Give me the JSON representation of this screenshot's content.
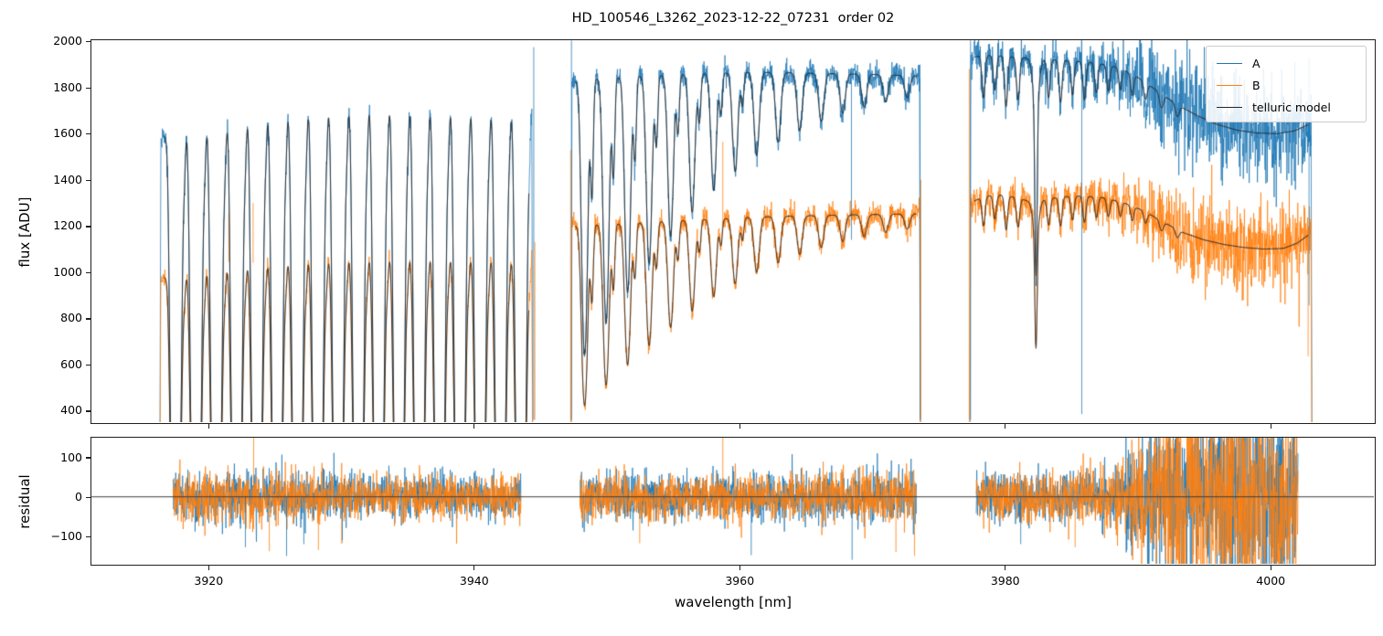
{
  "chart_data": {
    "type": "line",
    "title": "HD_100546_L3262_2023-12-22_07231  order 02",
    "xlabel": "wavelength [nm]",
    "xlim": [
      3911.2,
      4007.8
    ],
    "xticks": [
      3920,
      3940,
      3960,
      3980,
      4000
    ],
    "grid": false,
    "legend_position": "upper right",
    "legend": [
      {
        "label": "A",
        "color": "#1f77b4"
      },
      {
        "label": "B",
        "color": "#ff7f0e"
      },
      {
        "label": "telluric model",
        "color": "#262626"
      }
    ],
    "colors": {
      "A": "#1f77b4",
      "B": "#ff7f0e",
      "model": "#262626",
      "spine": "#1f1f1f",
      "zero_line": "#3a3a3a"
    },
    "panels": [
      {
        "name": "flux",
        "ylabel": "flux [ADU]",
        "ylim": [
          350,
          2005
        ],
        "yticks": [
          400,
          600,
          800,
          1000,
          1200,
          1400,
          1600,
          1800,
          2000
        ]
      },
      {
        "name": "residual",
        "ylabel": "residual",
        "ylim": [
          -170,
          150
        ],
        "yticks": [
          -100,
          0,
          100
        ]
      }
    ],
    "segments": [
      {
        "x0": 3916.35,
        "x1": 3944.45,
        "res_x0": 3917.35,
        "res_x1": 3943.55,
        "contA": [
          [
            3916.4,
            1560
          ],
          [
            3917.2,
            1640
          ],
          [
            3919,
            1660
          ],
          [
            3921,
            1690
          ],
          [
            3923,
            1715
          ],
          [
            3925,
            1735
          ],
          [
            3927,
            1755
          ],
          [
            3929,
            1765
          ],
          [
            3931,
            1775
          ],
          [
            3933,
            1778
          ],
          [
            3935,
            1772
          ],
          [
            3937,
            1768
          ],
          [
            3939,
            1763
          ],
          [
            3941,
            1756
          ],
          [
            3943,
            1748
          ],
          [
            3944.4,
            1742
          ]
        ],
        "contB": [
          [
            3916.4,
            960
          ],
          [
            3917.2,
            1010
          ],
          [
            3919,
            1030
          ],
          [
            3921,
            1050
          ],
          [
            3923,
            1065
          ],
          [
            3925,
            1078
          ],
          [
            3927,
            1088
          ],
          [
            3929,
            1095
          ],
          [
            3931,
            1100
          ],
          [
            3933,
            1103
          ],
          [
            3935,
            1104
          ],
          [
            3937,
            1104
          ],
          [
            3939,
            1103
          ],
          [
            3941,
            1100
          ],
          [
            3943,
            1092
          ],
          [
            3944.4,
            1085
          ]
        ],
        "lines": {
          "comb": {
            "start": 3917.55,
            "step": 1.529,
            "n": 18,
            "tau": 9,
            "w": 0.3
          },
          "sub": {
            "offset": 0.64,
            "tau": 0.12,
            "w": 0.13
          }
        },
        "noiseA": [
          [
            3916.5,
            26
          ],
          [
            3930,
            22
          ],
          [
            3944.4,
            25
          ]
        ],
        "noiseB": [
          [
            3916.5,
            22
          ],
          [
            3930,
            19
          ],
          [
            3944.4,
            22
          ]
        ],
        "resSigma": [
          [
            3917.4,
            30
          ],
          [
            3920,
            33
          ],
          [
            3926,
            35
          ],
          [
            3931,
            29
          ],
          [
            3936,
            27
          ],
          [
            3943.5,
            28
          ]
        ]
      },
      {
        "x0": 3947.32,
        "x1": 3973.66,
        "res_x0": 3948.0,
        "res_x1": 3973.35,
        "contA": [
          [
            3947.4,
            1825
          ],
          [
            3949,
            1838
          ],
          [
            3951,
            1845
          ],
          [
            3953,
            1850
          ],
          [
            3955,
            1855
          ],
          [
            3958,
            1862
          ],
          [
            3961,
            1866
          ],
          [
            3964,
            1864
          ],
          [
            3967,
            1860
          ],
          [
            3970,
            1857
          ],
          [
            3972,
            1853
          ],
          [
            3973.6,
            1850
          ]
        ],
        "contB": [
          [
            3947.4,
            1200
          ],
          [
            3949,
            1205
          ],
          [
            3951,
            1210
          ],
          [
            3953,
            1215
          ],
          [
            3955,
            1222
          ],
          [
            3958,
            1230
          ],
          [
            3961,
            1238
          ],
          [
            3964,
            1243
          ],
          [
            3967,
            1247
          ],
          [
            3970,
            1250
          ],
          [
            3972,
            1252
          ],
          [
            3973.6,
            1253
          ]
        ],
        "lines": {
          "comb": {
            "start": 3948.35,
            "step": 1.62,
            "n": 16,
            "tau": 1.05,
            "decay": 0.82,
            "w": 0.27
          },
          "sub": {
            "offset": 0.55,
            "tauFrac": 0.3,
            "w": 0.14,
            "n": 8
          }
        },
        "noiseA": [
          [
            3947.5,
            28
          ],
          [
            3960,
            25
          ],
          [
            3973.6,
            30
          ]
        ],
        "noiseB": [
          [
            3947.5,
            25
          ],
          [
            3960,
            24
          ],
          [
            3973.6,
            28
          ]
        ],
        "resSigma": [
          [
            3948,
            31
          ],
          [
            3955,
            30
          ],
          [
            3962,
            28
          ],
          [
            3968,
            31
          ],
          [
            3973.3,
            33
          ]
        ]
      },
      {
        "x0": 3977.35,
        "x1": 4003.15,
        "res_x0": 3977.85,
        "res_x1": 4002.1,
        "contA": [
          [
            3977.4,
            1930
          ],
          [
            3978.5,
            1940
          ],
          [
            3980,
            1936
          ],
          [
            3981.5,
            1928
          ],
          [
            3983,
            1922
          ],
          [
            3985,
            1915
          ],
          [
            3987,
            1905
          ],
          [
            3988.5,
            1888
          ],
          [
            3990,
            1845
          ],
          [
            3991.5,
            1785
          ],
          [
            3993,
            1725
          ],
          [
            3994.5,
            1678
          ],
          [
            3996,
            1640
          ],
          [
            3997.5,
            1615
          ],
          [
            3999,
            1603
          ],
          [
            4000.5,
            1600
          ],
          [
            4001.8,
            1612
          ],
          [
            4003.1,
            1645
          ]
        ],
        "contB": [
          [
            3977.4,
            1300
          ],
          [
            3978.5,
            1330
          ],
          [
            3980,
            1335
          ],
          [
            3981,
            1320
          ],
          [
            3982,
            1305
          ],
          [
            3983,
            1315
          ],
          [
            3984.5,
            1328
          ],
          [
            3986,
            1330
          ],
          [
            3987.5,
            1322
          ],
          [
            3989,
            1300
          ],
          [
            3990.5,
            1265
          ],
          [
            3992,
            1215
          ],
          [
            3993.5,
            1170
          ],
          [
            3995,
            1140
          ],
          [
            3996.5,
            1120
          ],
          [
            3998,
            1107
          ],
          [
            3999.5,
            1100
          ],
          [
            4001,
            1103
          ],
          [
            4002,
            1125
          ],
          [
            4003.1,
            1170
          ]
        ],
        "lines": {
          "list": [
            [
              3978.4,
              0.1,
              0.16
            ],
            [
              3979.25,
              0.08,
              0.16
            ],
            [
              3980.1,
              0.12,
              0.16
            ],
            [
              3981.0,
              0.1,
              0.16
            ],
            [
              3982.35,
              0.55,
              0.11
            ],
            [
              3982.35,
              0.12,
              0.3
            ],
            [
              3983.3,
              0.09,
              0.16
            ],
            [
              3984.2,
              0.1,
              0.16
            ],
            [
              3985.1,
              0.08,
              0.16
            ],
            [
              3986.0,
              0.09,
              0.16
            ],
            [
              3986.9,
              0.07,
              0.16
            ],
            [
              3987.8,
              0.06,
              0.16
            ],
            [
              3988.7,
              0.05,
              0.16
            ],
            [
              3989.6,
              0.05,
              0.16
            ],
            [
              3990.6,
              0.04,
              0.18
            ],
            [
              3991.8,
              0.035,
              0.2
            ],
            [
              3993.0,
              0.03,
              0.2
            ]
          ]
        },
        "noiseA": [
          [
            3977.5,
            40
          ],
          [
            3985,
            45
          ],
          [
            3988,
            55
          ],
          [
            3990,
            85
          ],
          [
            3992,
            105
          ],
          [
            3996,
            112
          ],
          [
            4000,
            112
          ],
          [
            4003,
            95
          ]
        ],
        "noiseB": [
          [
            3977.5,
            35
          ],
          [
            3985,
            40
          ],
          [
            3988,
            45
          ],
          [
            3990,
            62
          ],
          [
            3992,
            85
          ],
          [
            3996,
            95
          ],
          [
            4000,
            92
          ],
          [
            4003,
            80
          ]
        ],
        "resSigma": [
          [
            3977.9,
            33
          ],
          [
            3984,
            32
          ],
          [
            3988,
            42
          ],
          [
            3990,
            75
          ],
          [
            3992,
            115
          ],
          [
            3994,
            132
          ],
          [
            3997,
            136
          ],
          [
            4000,
            136
          ],
          [
            4002.1,
            125
          ]
        ]
      }
    ],
    "spikes_flux": [
      [
        "A",
        3944.52,
        1975,
        360
      ],
      [
        "B",
        3944.6,
        1130,
        360
      ],
      [
        "A",
        3947.36,
        2004,
        360
      ],
      [
        "B",
        3947.3,
        1530,
        360
      ],
      [
        "A",
        3973.62,
        1900,
        360
      ],
      [
        "B",
        3973.68,
        1400,
        360
      ],
      [
        "B",
        3977.32,
        1880,
        360
      ],
      [
        "A",
        3977.42,
        2004,
        360
      ],
      [
        "B",
        3958.76,
        1565,
        1200
      ],
      [
        "A",
        3968.45,
        1855,
        1140
      ],
      [
        "A",
        3985.8,
        1900,
        385
      ],
      [
        "B",
        3923.38,
        1300,
        1040
      ],
      [
        "B",
        3921.55,
        1255,
        1045
      ],
      [
        "A",
        4002.92,
        1930,
        855
      ],
      [
        "B",
        4002.85,
        1195,
        635
      ]
    ],
    "spikes_residual": [
      [
        "A",
        3922.8,
        -128
      ],
      [
        "B",
        3923.42,
        152
      ],
      [
        "B",
        3924.6,
        -138
      ],
      [
        "A",
        3925.9,
        -150
      ],
      [
        "A",
        3927.2,
        -120
      ],
      [
        "B",
        3928.3,
        -135
      ],
      [
        "A",
        3930.1,
        -110
      ],
      [
        "B",
        3952.5,
        -118
      ],
      [
        "B",
        3958.76,
        152
      ],
      [
        "A",
        3960.9,
        -148
      ],
      [
        "A",
        3968.5,
        -160
      ],
      [
        "B",
        3971.8,
        -140
      ],
      [
        "B",
        3973.2,
        -150
      ],
      [
        "A",
        3981.2,
        -120
      ],
      [
        "B",
        3985.3,
        -128
      ]
    ]
  }
}
